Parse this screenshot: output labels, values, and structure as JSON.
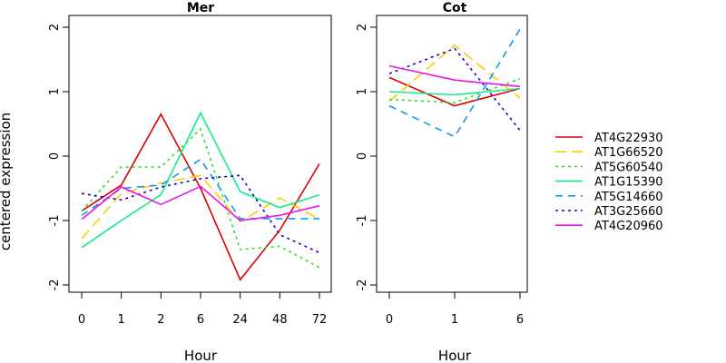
{
  "chart_data": {
    "type": "line",
    "ylabel": "centered expression",
    "ylim": [
      -2,
      2
    ],
    "yticks": [
      -2,
      -1,
      0,
      1,
      2
    ],
    "legend_position": "right",
    "series": [
      {
        "name": "AT4G22930",
        "color": "#dd0000",
        "dash": "solid"
      },
      {
        "name": "AT1G66520",
        "color": "#ffcc00",
        "dash": "long-dash"
      },
      {
        "name": "AT5G60540",
        "color": "#33dd22",
        "dash": "dotted"
      },
      {
        "name": "AT1G15390",
        "color": "#11ee88",
        "dash": "solid"
      },
      {
        "name": "AT5G14660",
        "color": "#1199ee",
        "dash": "dashed"
      },
      {
        "name": "AT3G25660",
        "color": "#2200cc",
        "dash": "dotted"
      },
      {
        "name": "AT4G20960",
        "color": "#ee11ee",
        "dash": "solid"
      }
    ],
    "panels": [
      {
        "title": "Mer",
        "xlabel": "Hour",
        "categories": [
          "0",
          "1",
          "2",
          "6",
          "24",
          "48",
          "72"
        ],
        "values": [
          [
            -0.85,
            -0.45,
            0.65,
            -0.5,
            -1.92,
            -1.15,
            -0.12
          ],
          [
            -1.28,
            -0.58,
            -0.42,
            -0.3,
            -1.02,
            -0.65,
            -0.98
          ],
          [
            -0.85,
            -0.17,
            -0.17,
            0.42,
            -1.45,
            -1.4,
            -1.73
          ],
          [
            -1.42,
            -1.0,
            -0.6,
            0.67,
            -0.55,
            -0.8,
            -0.6
          ],
          [
            -0.92,
            -0.5,
            -0.45,
            -0.05,
            -0.97,
            -0.97,
            -0.97
          ],
          [
            -0.58,
            -0.68,
            -0.48,
            -0.35,
            -0.3,
            -1.22,
            -1.5
          ],
          [
            -0.98,
            -0.48,
            -0.75,
            -0.47,
            -1.0,
            -0.92,
            -0.77
          ]
        ]
      },
      {
        "title": "Cot",
        "xlabel": "Hour",
        "categories": [
          "0",
          "1",
          "6"
        ],
        "values": [
          [
            1.22,
            0.78,
            1.05
          ],
          [
            0.85,
            1.72,
            0.9
          ],
          [
            0.88,
            0.83,
            1.2
          ],
          [
            1.0,
            0.95,
            1.05
          ],
          [
            0.78,
            0.3,
            1.97
          ],
          [
            1.28,
            1.67,
            0.4
          ],
          [
            1.4,
            1.18,
            1.08
          ]
        ]
      }
    ]
  }
}
